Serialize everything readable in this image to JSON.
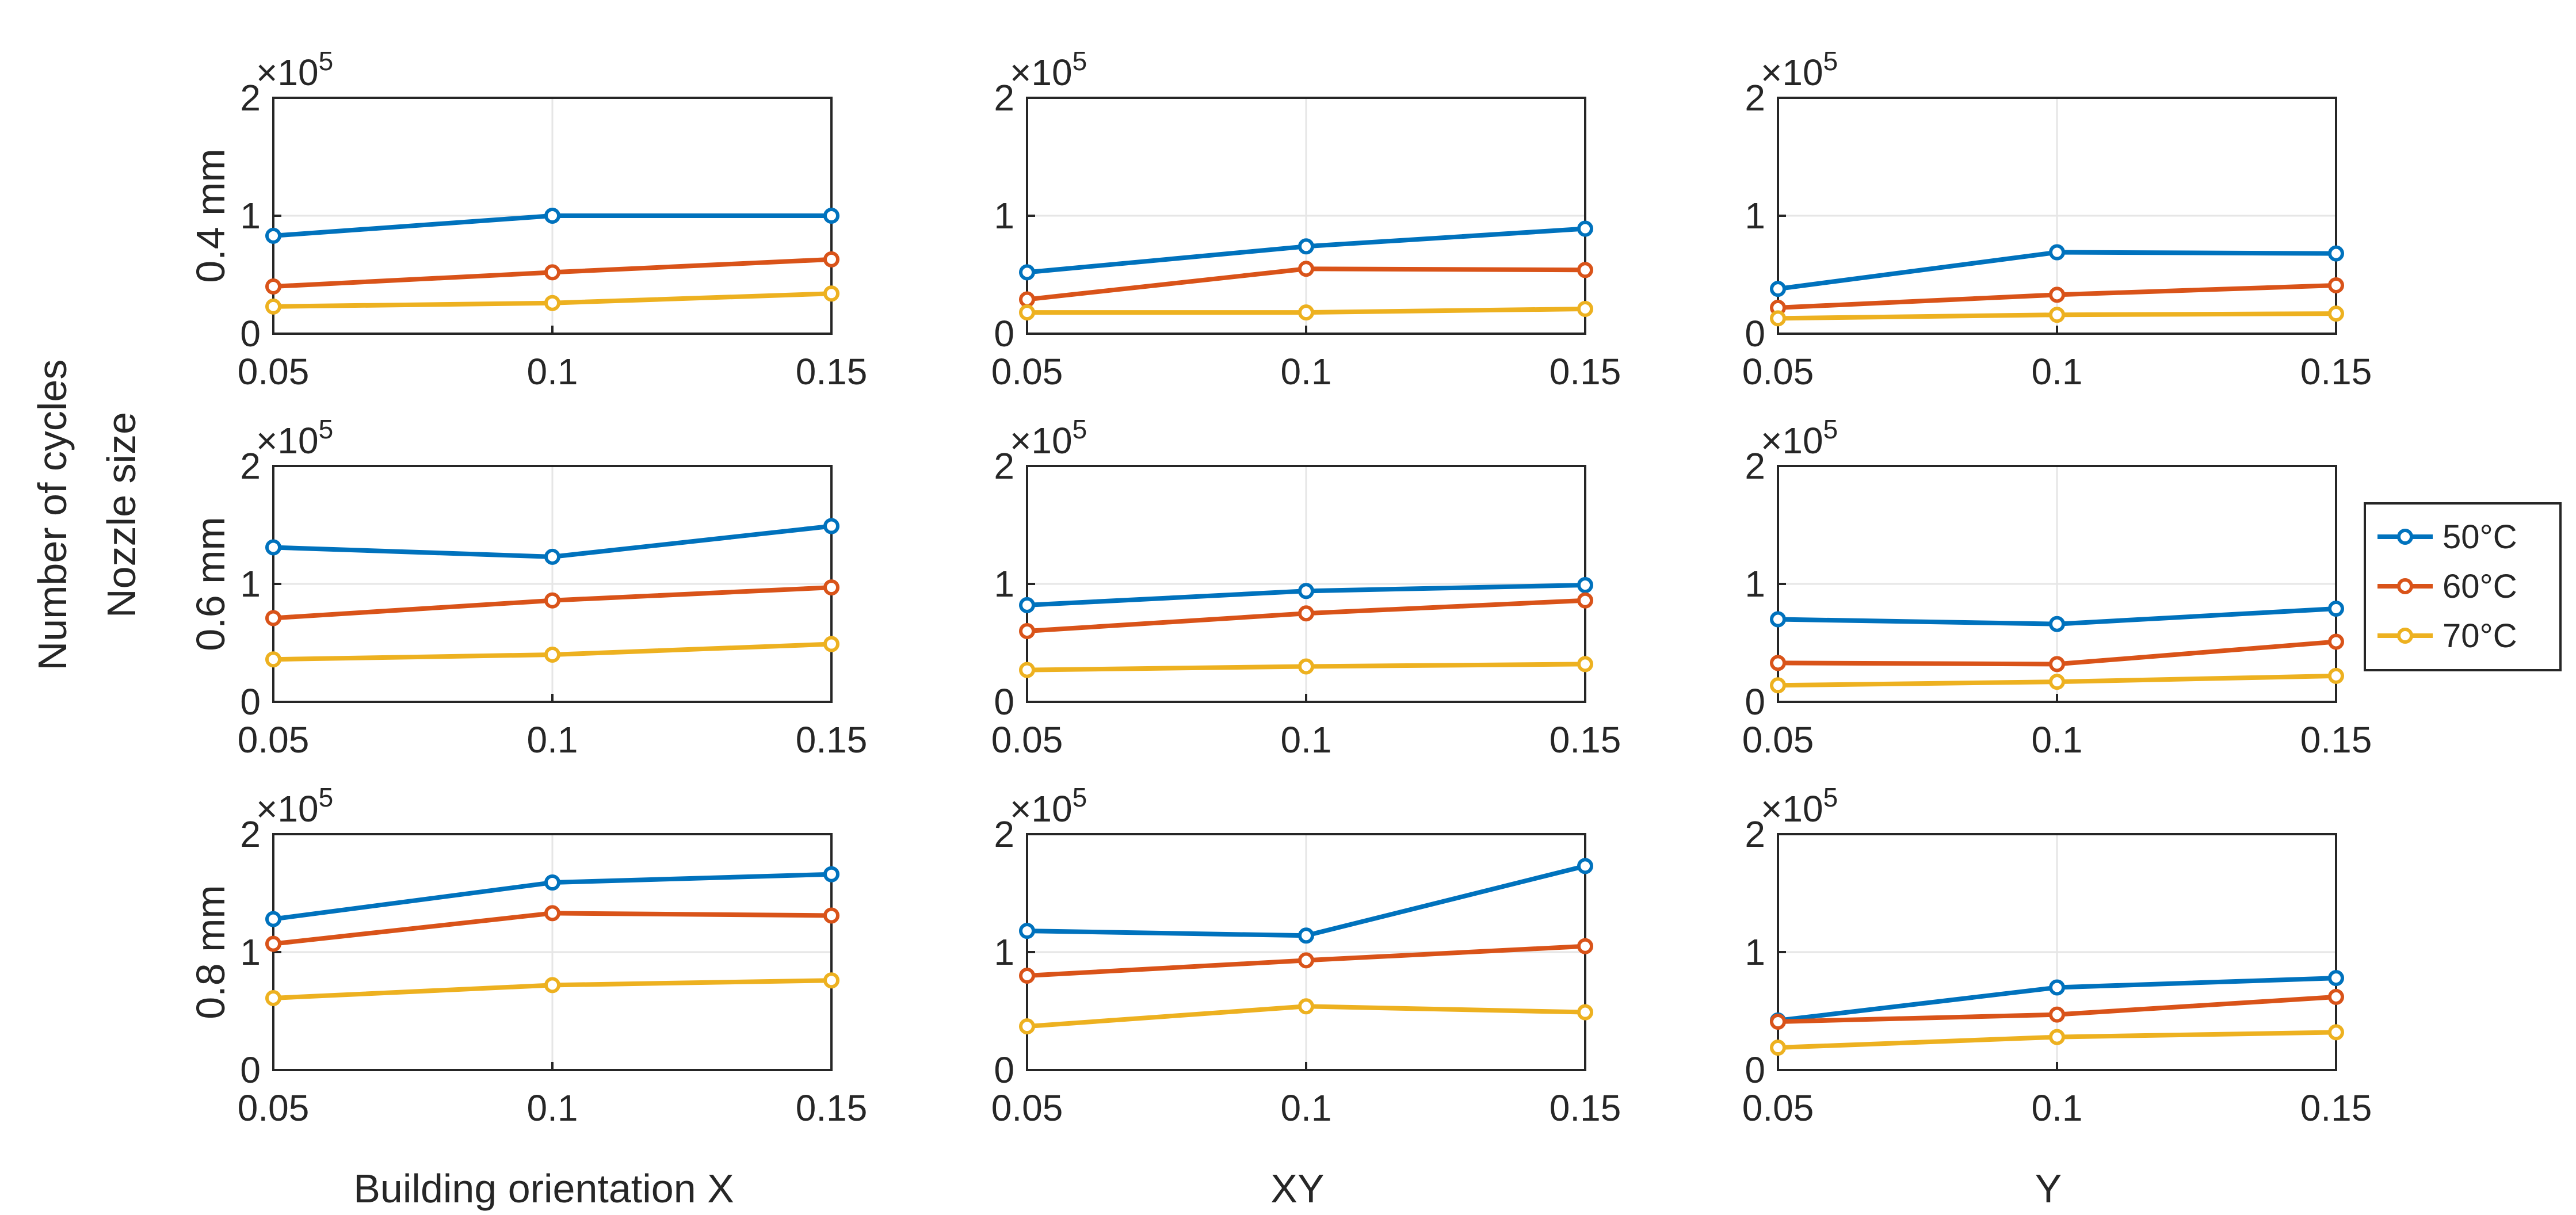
{
  "figure": {
    "ylabel_lines": [
      "Number of cycles",
      "Nozzle size"
    ],
    "row_labels": [
      "0.4 mm",
      "0.6 mm",
      "0.8 mm"
    ],
    "col_labels": [
      "Building orientation X",
      "XY",
      "Y"
    ],
    "x_ticks": [
      "0.05",
      "0.1",
      "0.15"
    ],
    "y_ticks": [
      "0",
      "1",
      "2"
    ],
    "y_multiplier": "×10",
    "y_multiplier_exp": "5",
    "legend": [
      "50°C",
      "60°C",
      "70°C"
    ],
    "colors": {
      "50°C": "#0072BD",
      "60°C": "#D95319",
      "70°C": "#EDB120"
    }
  },
  "chart_data": [
    {
      "type": "line",
      "row": "0.4 mm",
      "col": "Building orientation X",
      "x": [
        0.05,
        0.1,
        0.15
      ],
      "ylim": [
        0,
        200000
      ],
      "xlim": [
        0.05,
        0.15
      ],
      "grid": true,
      "series": [
        {
          "name": "50°C",
          "values": [
            83000,
            100000,
            100000
          ]
        },
        {
          "name": "60°C",
          "values": [
            40000,
            52000,
            63000
          ]
        },
        {
          "name": "70°C",
          "values": [
            23000,
            26000,
            34000
          ]
        }
      ]
    },
    {
      "type": "line",
      "row": "0.4 mm",
      "col": "XY",
      "x": [
        0.05,
        0.1,
        0.15
      ],
      "ylim": [
        0,
        200000
      ],
      "xlim": [
        0.05,
        0.15
      ],
      "grid": true,
      "series": [
        {
          "name": "50°C",
          "values": [
            52000,
            74000,
            89000
          ]
        },
        {
          "name": "60°C",
          "values": [
            29000,
            55000,
            54000
          ]
        },
        {
          "name": "70°C",
          "values": [
            18000,
            18000,
            21000
          ]
        }
      ]
    },
    {
      "type": "line",
      "row": "0.4 mm",
      "col": "Y",
      "x": [
        0.05,
        0.1,
        0.15
      ],
      "ylim": [
        0,
        200000
      ],
      "xlim": [
        0.05,
        0.15
      ],
      "grid": true,
      "series": [
        {
          "name": "50°C",
          "values": [
            38000,
            69000,
            68000
          ]
        },
        {
          "name": "60°C",
          "values": [
            22000,
            33000,
            41000
          ]
        },
        {
          "name": "70°C",
          "values": [
            13000,
            16000,
            17000
          ]
        }
      ]
    },
    {
      "type": "line",
      "row": "0.6 mm",
      "col": "Building orientation X",
      "x": [
        0.05,
        0.1,
        0.15
      ],
      "ylim": [
        0,
        200000
      ],
      "xlim": [
        0.05,
        0.15
      ],
      "grid": true,
      "series": [
        {
          "name": "50°C",
          "values": [
            131000,
            123000,
            149000
          ]
        },
        {
          "name": "60°C",
          "values": [
            71000,
            86000,
            97000
          ]
        },
        {
          "name": "70°C",
          "values": [
            36000,
            40000,
            49000
          ]
        }
      ]
    },
    {
      "type": "line",
      "row": "0.6 mm",
      "col": "XY",
      "x": [
        0.05,
        0.1,
        0.15
      ],
      "ylim": [
        0,
        200000
      ],
      "xlim": [
        0.05,
        0.15
      ],
      "grid": true,
      "series": [
        {
          "name": "50°C",
          "values": [
            82000,
            94000,
            99000
          ]
        },
        {
          "name": "60°C",
          "values": [
            60000,
            75000,
            86000
          ]
        },
        {
          "name": "70°C",
          "values": [
            27000,
            30000,
            32000
          ]
        }
      ]
    },
    {
      "type": "line",
      "row": "0.6 mm",
      "col": "Y",
      "x": [
        0.05,
        0.1,
        0.15
      ],
      "ylim": [
        0,
        200000
      ],
      "xlim": [
        0.05,
        0.15
      ],
      "grid": true,
      "series": [
        {
          "name": "50°C",
          "values": [
            70000,
            66000,
            79000
          ]
        },
        {
          "name": "60°C",
          "values": [
            33000,
            32000,
            51000
          ]
        },
        {
          "name": "70°C",
          "values": [
            14000,
            17000,
            22000
          ]
        }
      ]
    },
    {
      "type": "line",
      "row": "0.8 mm",
      "col": "Building orientation X",
      "x": [
        0.05,
        0.1,
        0.15
      ],
      "ylim": [
        0,
        200000
      ],
      "xlim": [
        0.05,
        0.15
      ],
      "grid": true,
      "series": [
        {
          "name": "50°C",
          "values": [
            128000,
            159000,
            166000
          ]
        },
        {
          "name": "60°C",
          "values": [
            107000,
            133000,
            131000
          ]
        },
        {
          "name": "70°C",
          "values": [
            61000,
            72000,
            76000
          ]
        }
      ]
    },
    {
      "type": "line",
      "row": "0.8 mm",
      "col": "XY",
      "x": [
        0.05,
        0.1,
        0.15
      ],
      "ylim": [
        0,
        200000
      ],
      "xlim": [
        0.05,
        0.15
      ],
      "grid": true,
      "series": [
        {
          "name": "50°C",
          "values": [
            118000,
            114000,
            173000
          ]
        },
        {
          "name": "60°C",
          "values": [
            80000,
            93000,
            105000
          ]
        },
        {
          "name": "70°C",
          "values": [
            37000,
            54000,
            49000
          ]
        }
      ]
    },
    {
      "type": "line",
      "row": "0.8 mm",
      "col": "Y",
      "x": [
        0.05,
        0.1,
        0.15
      ],
      "ylim": [
        0,
        200000
      ],
      "xlim": [
        0.05,
        0.15
      ],
      "grid": true,
      "series": [
        {
          "name": "50°C",
          "values": [
            42000,
            70000,
            78000
          ]
        },
        {
          "name": "60°C",
          "values": [
            41000,
            47000,
            62000
          ]
        },
        {
          "name": "70°C",
          "values": [
            19000,
            28000,
            32000
          ]
        }
      ]
    }
  ]
}
